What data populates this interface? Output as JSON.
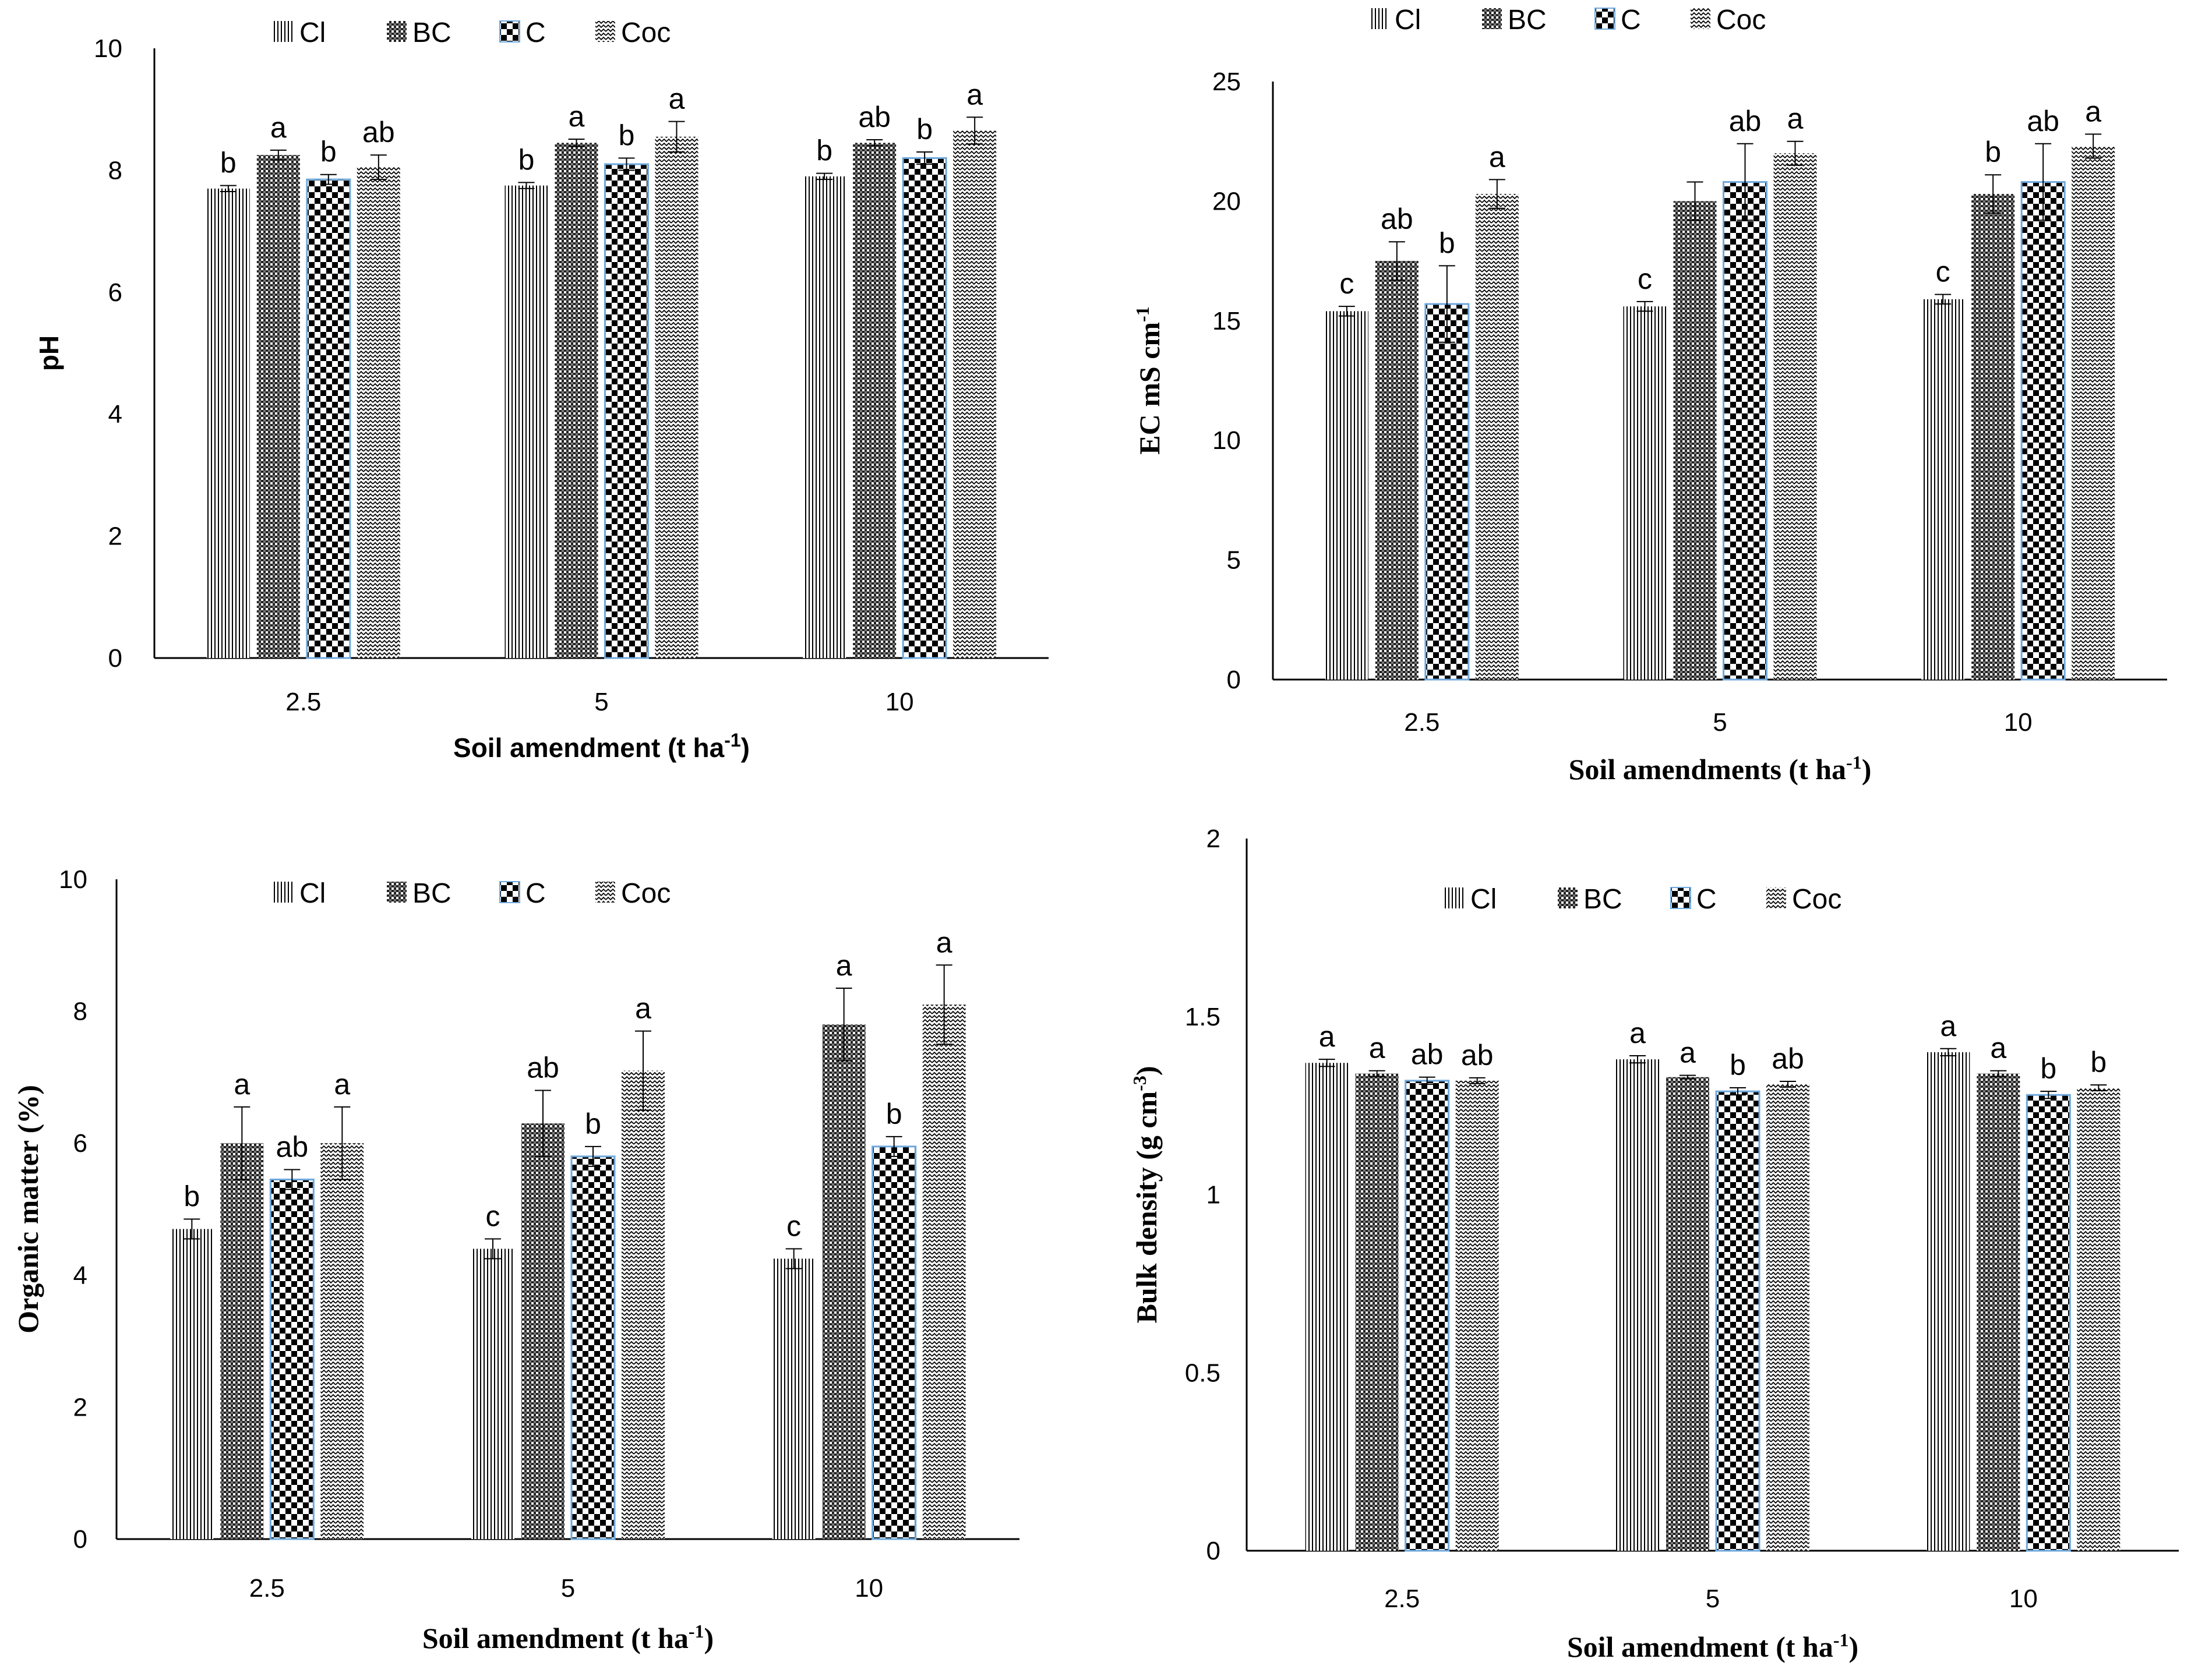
{
  "figure": {
    "series_names": [
      "Cl",
      "BC",
      "C",
      "Coc"
    ],
    "series_patterns": [
      "vlines",
      "dots",
      "checker",
      "zigzag"
    ],
    "colors": {
      "axis": "#000000",
      "c_outline": "#6fa8dc",
      "pattern": "#000000"
    }
  },
  "chart_data": [
    {
      "type": "bar",
      "id": "ph",
      "title": "",
      "ylabel": "pH",
      "xlabel": "Soil amendment (t ha",
      "xlabel_sup": "-1",
      "xlabel_end": ")",
      "ylim": [
        0,
        10
      ],
      "yticks": [
        0,
        2,
        4,
        6,
        8,
        10
      ],
      "ytick_labels": [
        "0",
        "2",
        "4",
        "6",
        "8",
        "10"
      ],
      "categories": [
        "2.5",
        "5",
        "10"
      ],
      "legend": [
        "Cl",
        "BC",
        "C",
        "Coc"
      ],
      "grid": false,
      "series": [
        {
          "name": "Cl",
          "values": [
            7.7,
            7.75,
            7.9
          ],
          "errors": [
            0.05,
            0.05,
            0.05
          ],
          "letters": [
            "b",
            "b",
            "b"
          ]
        },
        {
          "name": "BC",
          "values": [
            8.25,
            8.45,
            8.45
          ],
          "errors": [
            0.08,
            0.06,
            0.05
          ],
          "letters": [
            "a",
            "a",
            "ab"
          ]
        },
        {
          "name": "C",
          "values": [
            7.85,
            8.1,
            8.2
          ],
          "errors": [
            0.08,
            0.1,
            0.1
          ],
          "letters": [
            "b",
            "b",
            "b"
          ]
        },
        {
          "name": "Coc",
          "values": [
            8.05,
            8.55,
            8.65
          ],
          "errors": [
            0.2,
            0.25,
            0.22
          ],
          "letters": [
            "ab",
            "a",
            "a"
          ]
        }
      ]
    },
    {
      "type": "bar",
      "id": "ec",
      "title": "",
      "ylabel": "EC mS cm",
      "ylabel_sup": "-1",
      "xlabel": "Soil amendments (t ha",
      "xlabel_sup": "-1",
      "xlabel_end": ")",
      "ylim": [
        0,
        25
      ],
      "yticks": [
        0,
        5,
        10,
        15,
        20,
        25
      ],
      "ytick_labels": [
        "0",
        "5",
        "10",
        "15",
        "20",
        "25"
      ],
      "categories": [
        "2.5",
        "5",
        "10"
      ],
      "legend": [
        "Cl",
        "BC",
        "C",
        "Coc"
      ],
      "grid": false,
      "series": [
        {
          "name": "Cl",
          "values": [
            15.4,
            15.6,
            15.9
          ],
          "errors": [
            0.2,
            0.2,
            0.2
          ],
          "letters": [
            "c",
            "c",
            "c"
          ]
        },
        {
          "name": "BC",
          "values": [
            17.5,
            20.0,
            20.3
          ],
          "errors": [
            0.8,
            0.8,
            0.8
          ],
          "letters": [
            "ab",
            "",
            "b"
          ]
        },
        {
          "name": "C",
          "values": [
            15.7,
            20.8,
            20.8
          ],
          "errors": [
            1.6,
            1.6,
            1.6
          ],
          "letters": [
            "b",
            "ab",
            "ab"
          ]
        },
        {
          "name": "Coc",
          "values": [
            20.3,
            22.0,
            22.3
          ],
          "errors": [
            0.6,
            0.5,
            0.5
          ],
          "letters": [
            "a",
            "a",
            "a"
          ]
        }
      ]
    },
    {
      "type": "bar",
      "id": "om",
      "title": "",
      "ylabel": "Organic matter (%)",
      "xlabel": "Soil amendment (t ha",
      "xlabel_sup": "-1",
      "xlabel_end": ")",
      "ylim": [
        0,
        10
      ],
      "yticks": [
        0,
        2,
        4,
        6,
        8,
        10
      ],
      "ytick_labels": [
        "0",
        "2",
        "4",
        "6",
        "8",
        "10"
      ],
      "categories": [
        "2.5",
        "5",
        "10"
      ],
      "legend": [
        "Cl",
        "BC",
        "C",
        "Coc"
      ],
      "grid": false,
      "series": [
        {
          "name": "Cl",
          "values": [
            4.7,
            4.4,
            4.25
          ],
          "errors": [
            0.15,
            0.15,
            0.15
          ],
          "letters": [
            "b",
            "c",
            "c"
          ]
        },
        {
          "name": "BC",
          "values": [
            6.0,
            6.3,
            7.8
          ],
          "errors": [
            0.55,
            0.5,
            0.55
          ],
          "letters": [
            "a",
            "ab",
            "a"
          ]
        },
        {
          "name": "C",
          "values": [
            5.45,
            5.8,
            5.95
          ],
          "errors": [
            0.15,
            0.15,
            0.15
          ],
          "letters": [
            "ab",
            "b",
            "b"
          ]
        },
        {
          "name": "Coc",
          "values": [
            6.0,
            7.1,
            8.1
          ],
          "errors": [
            0.55,
            0.6,
            0.6
          ],
          "letters": [
            "a",
            "a",
            "a"
          ]
        }
      ]
    },
    {
      "type": "bar",
      "id": "bd",
      "title": "",
      "ylabel": "Bulk density (g cm",
      "ylabel_sup": "-3",
      "ylabel_end": ")",
      "xlabel": "Soil amendment (t ha",
      "xlabel_sup": "-1",
      "xlabel_end": ")",
      "ylim": [
        0,
        2
      ],
      "yticks": [
        0,
        0.5,
        1,
        1.5,
        2
      ],
      "ytick_labels": [
        "0",
        "0.5",
        "1",
        "1.5",
        "2"
      ],
      "categories": [
        "2.5",
        "5",
        "10"
      ],
      "legend": [
        "Cl",
        "BC",
        "C",
        "Coc"
      ],
      "grid": false,
      "series": [
        {
          "name": "Cl",
          "values": [
            1.37,
            1.38,
            1.4
          ],
          "errors": [
            0.01,
            0.01,
            0.01
          ],
          "letters": [
            "a",
            "a",
            "a"
          ]
        },
        {
          "name": "BC",
          "values": [
            1.34,
            1.33,
            1.34
          ],
          "errors": [
            0.008,
            0.005,
            0.008
          ],
          "letters": [
            "a",
            "a",
            "a"
          ]
        },
        {
          "name": "C",
          "values": [
            1.32,
            1.29,
            1.28
          ],
          "errors": [
            0.01,
            0.01,
            0.01
          ],
          "letters": [
            "ab",
            "b",
            "b"
          ]
        },
        {
          "name": "Coc",
          "values": [
            1.32,
            1.31,
            1.3
          ],
          "errors": [
            0.008,
            0.008,
            0.008
          ],
          "letters": [
            "ab",
            "ab",
            "b"
          ]
        }
      ]
    }
  ]
}
